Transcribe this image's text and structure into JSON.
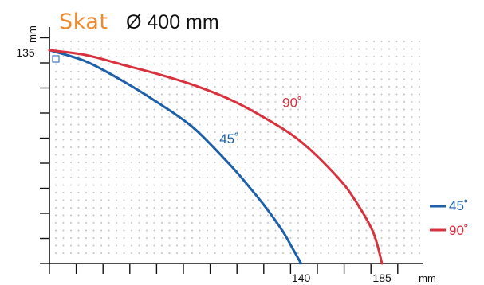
{
  "chart_data": {
    "type": "line",
    "title": {
      "brand": "Skat",
      "subtitle": "Ø 400 mm"
    },
    "xlabel": "mm",
    "ylabel": "mm",
    "xlim": [
      0,
      220
    ],
    "ylim": [
      0,
      135
    ],
    "y_tick_labels": [
      {
        "value": 135,
        "label": "135"
      }
    ],
    "x_tick_labels": [
      {
        "value": 140,
        "label": "140"
      },
      {
        "value": 185,
        "label": "185"
      }
    ],
    "grid": "dotted",
    "legend_position": "right",
    "series": [
      {
        "name": "45˚",
        "color": "#1d5fa8",
        "x": [
          0,
          20,
          40,
          60,
          80,
          100,
          110,
          120,
          130,
          135,
          140
        ],
        "y": [
          135,
          128,
          116,
          102,
          86,
          63,
          50,
          36,
          20,
          10,
          0
        ]
      },
      {
        "name": "90˚",
        "color": "#d8323f",
        "x": [
          0,
          20,
          40,
          60,
          80,
          100,
          120,
          140,
          160,
          170,
          180,
          185
        ],
        "y": [
          135,
          132,
          126,
          120,
          113,
          104,
          92,
          77,
          55,
          40,
          20,
          0
        ]
      }
    ],
    "colors": {
      "brand": "#ef8a2e",
      "axis": "#111111",
      "grid_dot": "#c4c4c4",
      "marker": "#3b78c9"
    }
  }
}
